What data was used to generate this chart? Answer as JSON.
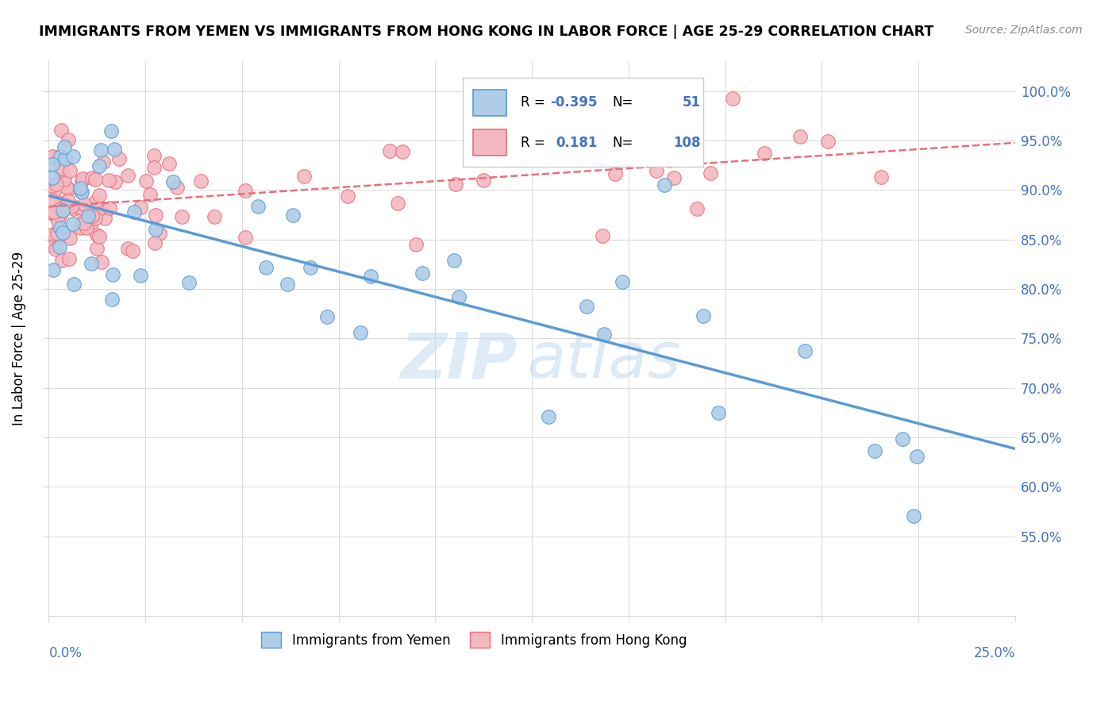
{
  "title": "IMMIGRANTS FROM YEMEN VS IMMIGRANTS FROM HONG KONG IN LABOR FORCE | AGE 25-29 CORRELATION CHART",
  "source": "Source: ZipAtlas.com",
  "ylabel": "In Labor Force | Age 25-29",
  "y_ticks_pct": [
    55,
    60,
    65,
    70,
    75,
    80,
    85,
    90,
    95,
    100
  ],
  "x_range": [
    0.0,
    0.25
  ],
  "y_range": [
    0.47,
    1.03
  ],
  "legend_R_yemen": "-0.395",
  "legend_N_yemen": "51",
  "legend_R_hk": "0.181",
  "legend_N_hk": "108",
  "color_yemen": "#aecde8",
  "color_hk": "#f4b8c1",
  "line_color_yemen": "#5b9bd5",
  "line_color_hk": "#e8707a",
  "tick_color": "#4472c4",
  "grid_color": "#d9d9d9"
}
